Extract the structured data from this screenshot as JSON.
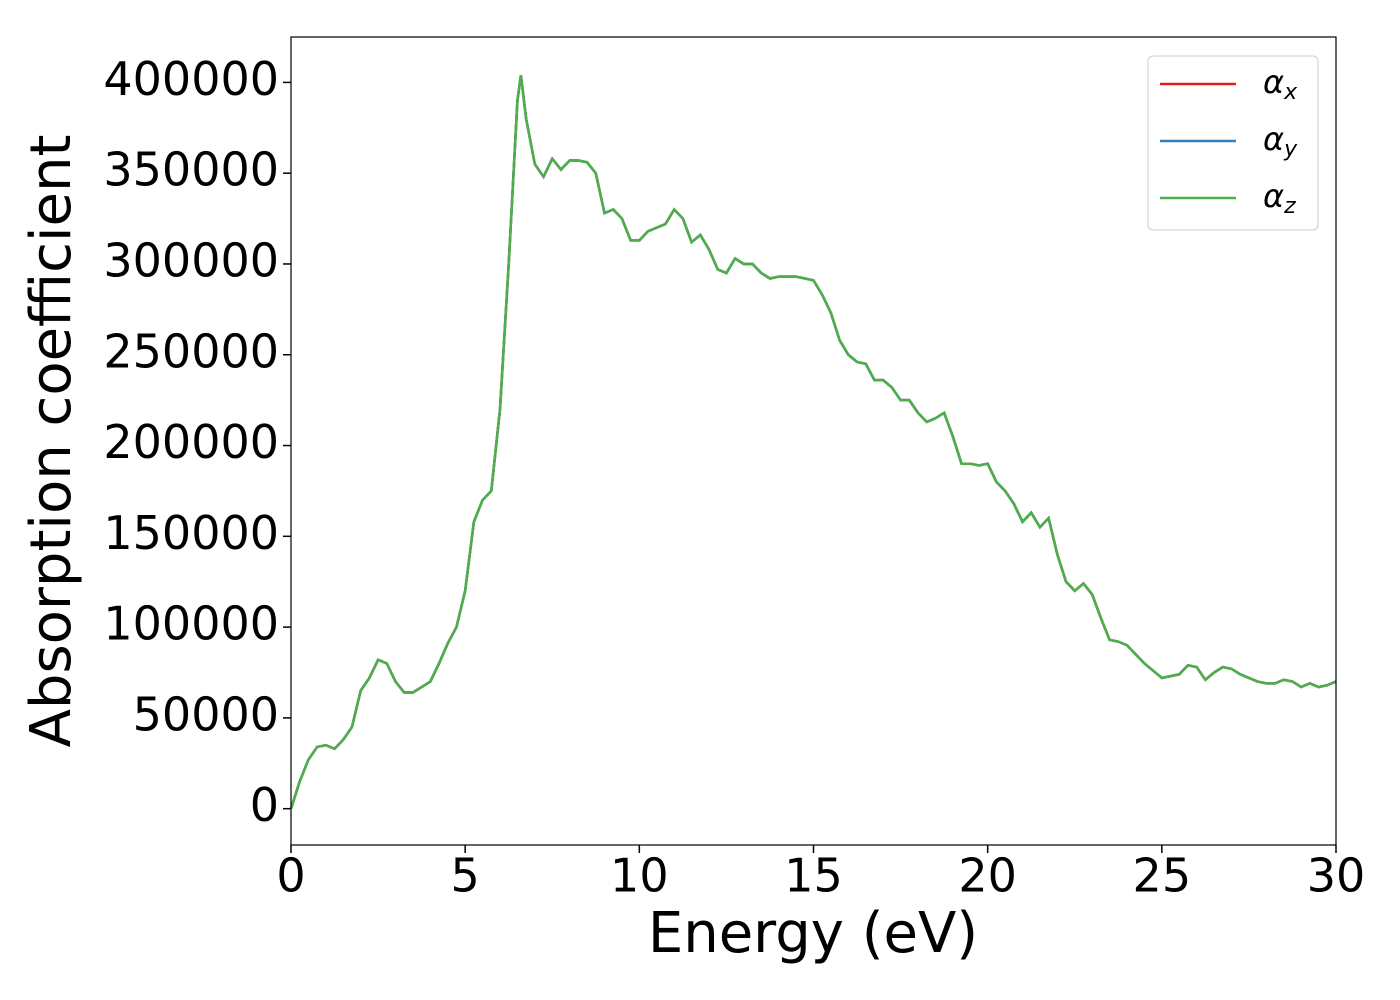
{
  "chart_data": {
    "type": "line",
    "xlabel": "Energy (eV)",
    "ylabel": "Absorption coefficient",
    "x": [
      0,
      0.25,
      0.5,
      0.75,
      1,
      1.25,
      1.5,
      1.75,
      2,
      2.25,
      2.5,
      2.75,
      3,
      3.25,
      3.5,
      3.75,
      4,
      4.25,
      4.5,
      4.75,
      5,
      5.25,
      5.5,
      5.75,
      6,
      6.25,
      6.5,
      6.6,
      6.75,
      7,
      7.25,
      7.5,
      7.75,
      8,
      8.25,
      8.5,
      8.75,
      9,
      9.25,
      9.5,
      9.75,
      10,
      10.25,
      10.5,
      10.75,
      11,
      11.25,
      11.5,
      11.75,
      12,
      12.25,
      12.5,
      12.75,
      13,
      13.25,
      13.5,
      13.75,
      14,
      14.5,
      15,
      15.25,
      15.5,
      15.75,
      16,
      16.25,
      16.5,
      16.75,
      17,
      17.25,
      17.5,
      17.75,
      18,
      18.25,
      18.5,
      18.75,
      19,
      19.25,
      19.5,
      19.75,
      20,
      20.25,
      20.5,
      20.75,
      21,
      21.25,
      21.5,
      21.75,
      22,
      22.25,
      22.5,
      22.75,
      23,
      23.25,
      23.5,
      23.75,
      24,
      24.25,
      24.5,
      24.75,
      25,
      25.25,
      25.5,
      25.75,
      26,
      26.25,
      26.5,
      26.75,
      27,
      27.25,
      27.5,
      27.75,
      28,
      28.25,
      28.5,
      28.75,
      29,
      29.25,
      29.5,
      29.75,
      30
    ],
    "series": [
      {
        "name": "αx",
        "color": "#e41a1c",
        "values": [
          0,
          15000,
          27000,
          34000,
          35000,
          33000,
          38000,
          45000,
          65000,
          72000,
          82000,
          80000,
          70000,
          64000,
          64000,
          67000,
          70000,
          80000,
          91000,
          100000,
          120000,
          158000,
          170000,
          175000,
          220000,
          300000,
          390000,
          404000,
          380000,
          355000,
          348000,
          358000,
          352000,
          357000,
          357000,
          356000,
          350000,
          328000,
          330000,
          325000,
          313000,
          313000,
          318000,
          320000,
          322000,
          330000,
          325000,
          312000,
          316000,
          308000,
          297000,
          295000,
          303000,
          300000,
          300000,
          295000,
          292000,
          293000,
          293000,
          291000,
          283000,
          273000,
          258000,
          250000,
          246000,
          245000,
          236000,
          236000,
          232000,
          225000,
          225000,
          218000,
          213000,
          215000,
          218000,
          205000,
          190000,
          190000,
          189000,
          190000,
          180000,
          175000,
          168000,
          158000,
          163000,
          155000,
          160000,
          140000,
          125000,
          120000,
          124000,
          118000,
          105000,
          93000,
          92000,
          90000,
          85000,
          80000,
          76000,
          72000,
          73000,
          74000,
          79000,
          78000,
          71000,
          75000,
          78000,
          77000,
          74000,
          72000,
          70000,
          69000,
          69000,
          71000,
          70000,
          67000,
          69000,
          67000,
          68000,
          70000
        ]
      },
      {
        "name": "αy",
        "color": "#377eb8",
        "values": [
          0,
          15000,
          27000,
          34000,
          35000,
          33000,
          38000,
          45000,
          65000,
          72000,
          82000,
          80000,
          70000,
          64000,
          64000,
          67000,
          70000,
          80000,
          91000,
          100000,
          120000,
          158000,
          170000,
          175000,
          220000,
          300000,
          390000,
          404000,
          380000,
          355000,
          348000,
          358000,
          352000,
          357000,
          357000,
          356000,
          350000,
          328000,
          330000,
          325000,
          313000,
          313000,
          318000,
          320000,
          322000,
          330000,
          325000,
          312000,
          316000,
          308000,
          297000,
          295000,
          303000,
          300000,
          300000,
          295000,
          292000,
          293000,
          293000,
          291000,
          283000,
          273000,
          258000,
          250000,
          246000,
          245000,
          236000,
          236000,
          232000,
          225000,
          225000,
          218000,
          213000,
          215000,
          218000,
          205000,
          190000,
          190000,
          189000,
          190000,
          180000,
          175000,
          168000,
          158000,
          163000,
          155000,
          160000,
          140000,
          125000,
          120000,
          124000,
          118000,
          105000,
          93000,
          92000,
          90000,
          85000,
          80000,
          76000,
          72000,
          73000,
          74000,
          79000,
          78000,
          71000,
          75000,
          78000,
          77000,
          74000,
          72000,
          70000,
          69000,
          69000,
          71000,
          70000,
          67000,
          69000,
          67000,
          68000,
          70000
        ]
      },
      {
        "name": "αz",
        "color": "#4daf4a",
        "values": [
          0,
          15000,
          27000,
          34000,
          35000,
          33000,
          38000,
          45000,
          65000,
          72000,
          82000,
          80000,
          70000,
          64000,
          64000,
          67000,
          70000,
          80000,
          91000,
          100000,
          120000,
          158000,
          170000,
          175000,
          220000,
          300000,
          390000,
          404000,
          380000,
          355000,
          348000,
          358000,
          352000,
          357000,
          357000,
          356000,
          350000,
          328000,
          330000,
          325000,
          313000,
          313000,
          318000,
          320000,
          322000,
          330000,
          325000,
          312000,
          316000,
          308000,
          297000,
          295000,
          303000,
          300000,
          300000,
          295000,
          292000,
          293000,
          293000,
          291000,
          283000,
          273000,
          258000,
          250000,
          246000,
          245000,
          236000,
          236000,
          232000,
          225000,
          225000,
          218000,
          213000,
          215000,
          218000,
          205000,
          190000,
          190000,
          189000,
          190000,
          180000,
          175000,
          168000,
          158000,
          163000,
          155000,
          160000,
          140000,
          125000,
          120000,
          124000,
          118000,
          105000,
          93000,
          92000,
          90000,
          85000,
          80000,
          76000,
          72000,
          73000,
          74000,
          79000,
          78000,
          71000,
          75000,
          78000,
          77000,
          74000,
          72000,
          70000,
          69000,
          69000,
          71000,
          70000,
          67000,
          69000,
          67000,
          68000,
          70000
        ]
      }
    ],
    "xlim": [
      0,
      30
    ],
    "xticks": [
      0,
      5,
      10,
      15,
      20,
      25,
      30
    ],
    "ylim": [
      -20000,
      425000
    ],
    "yticks": [
      0,
      50000,
      100000,
      150000,
      200000,
      250000,
      300000,
      350000,
      400000
    ],
    "legend": "upper right"
  }
}
